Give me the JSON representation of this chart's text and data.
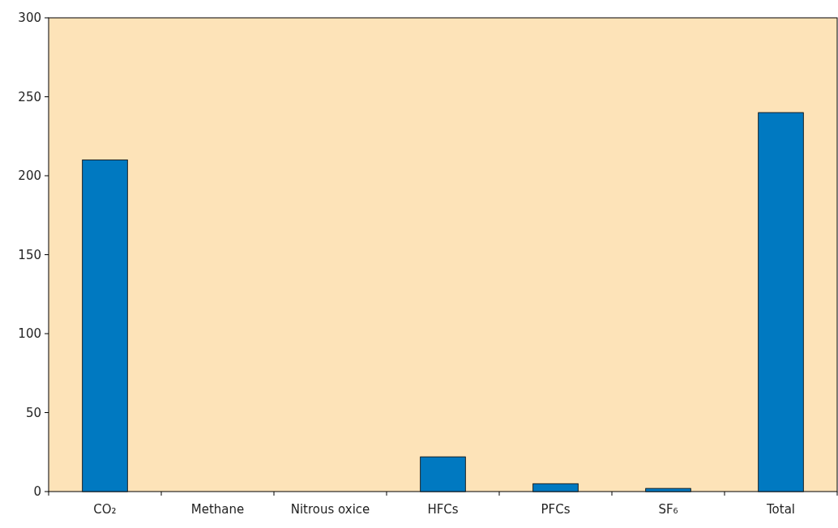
{
  "chart_data": {
    "type": "bar",
    "categories": [
      "CO₂",
      "Methane",
      "Nitrous oxice",
      "HFCs",
      "PFCs",
      "SF₆",
      "Total"
    ],
    "values": [
      210,
      0,
      0,
      22,
      5,
      2,
      240
    ],
    "color": "#0079c1",
    "ylim": [
      0,
      300
    ],
    "yticks": [
      0,
      50,
      100,
      150,
      200,
      250,
      300
    ],
    "grid": false
  }
}
